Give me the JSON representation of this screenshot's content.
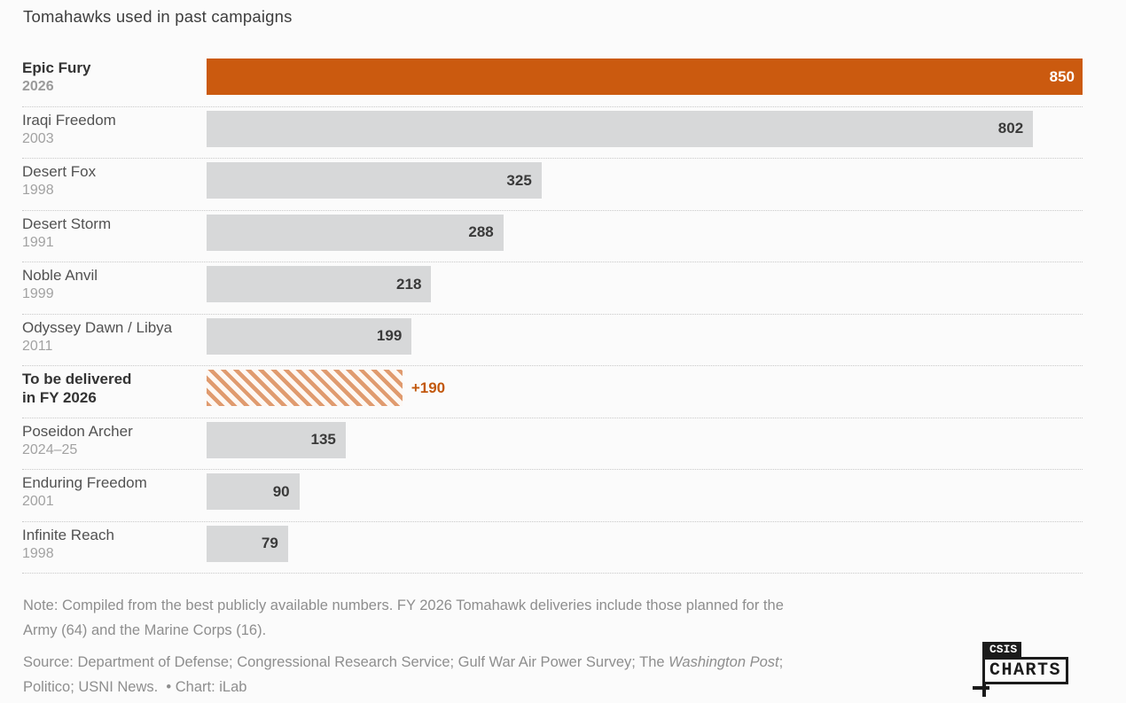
{
  "chart_data": {
    "type": "bar",
    "orientation": "horizontal",
    "title": "Tomahawks used in past campaigns",
    "xlabel": "",
    "ylabel": "",
    "xlim": [
      0,
      850
    ],
    "grid": false,
    "value_axis_visible": false,
    "bars": [
      {
        "label": "Epic Fury",
        "sublabel": "2026",
        "value": 850,
        "value_label": "850",
        "style": "highlight"
      },
      {
        "label": "Iraqi Freedom",
        "sublabel": "2003",
        "value": 802,
        "value_label": "802",
        "style": "normal"
      },
      {
        "label": "Desert Fox",
        "sublabel": "1998",
        "value": 325,
        "value_label": "325",
        "style": "normal"
      },
      {
        "label": "Desert Storm",
        "sublabel": "1991",
        "value": 288,
        "value_label": "288",
        "style": "normal"
      },
      {
        "label": "Noble Anvil",
        "sublabel": "1999",
        "value": 218,
        "value_label": "218",
        "style": "normal"
      },
      {
        "label": "Odyssey Dawn / Libya",
        "sublabel": "2011",
        "value": 199,
        "value_label": "199",
        "style": "normal"
      },
      {
        "label": "To be delivered",
        "sublabel": "in FY 2026",
        "value": 190,
        "value_label": "+190",
        "style": "hatched"
      },
      {
        "label": "Poseidon Archer",
        "sublabel": "2024–25",
        "value": 135,
        "value_label": "135",
        "style": "normal"
      },
      {
        "label": "Enduring Freedom",
        "sublabel": "2001",
        "value": 90,
        "value_label": "90",
        "style": "normal"
      },
      {
        "label": "Infinite Reach",
        "sublabel": "1998",
        "value": 79,
        "value_label": "79",
        "style": "normal"
      }
    ]
  },
  "note": {
    "line1": "Note: Compiled from the best publicly available numbers. FY 2026 Tomahawk deliveries include those planned for the",
    "line2": "Army (64) and the Marine Corps (16)."
  },
  "source": {
    "line1_prefix": "Source: Department of Defense; Congressional Research Service; Gulf War Air Power Survey; The ",
    "line1_italic": "Washington Post",
    "line1_suffix": ";",
    "line2": "Politico; USNI News.  • Chart: iLab"
  },
  "logo": {
    "top_text": "CSIS",
    "bottom_text": "CHARTS"
  },
  "colors": {
    "highlight_bar": "#cb5a0f",
    "normal_bar": "#d7d8d9",
    "accent_text": "#c2580d",
    "background": "#fbfbfb"
  }
}
